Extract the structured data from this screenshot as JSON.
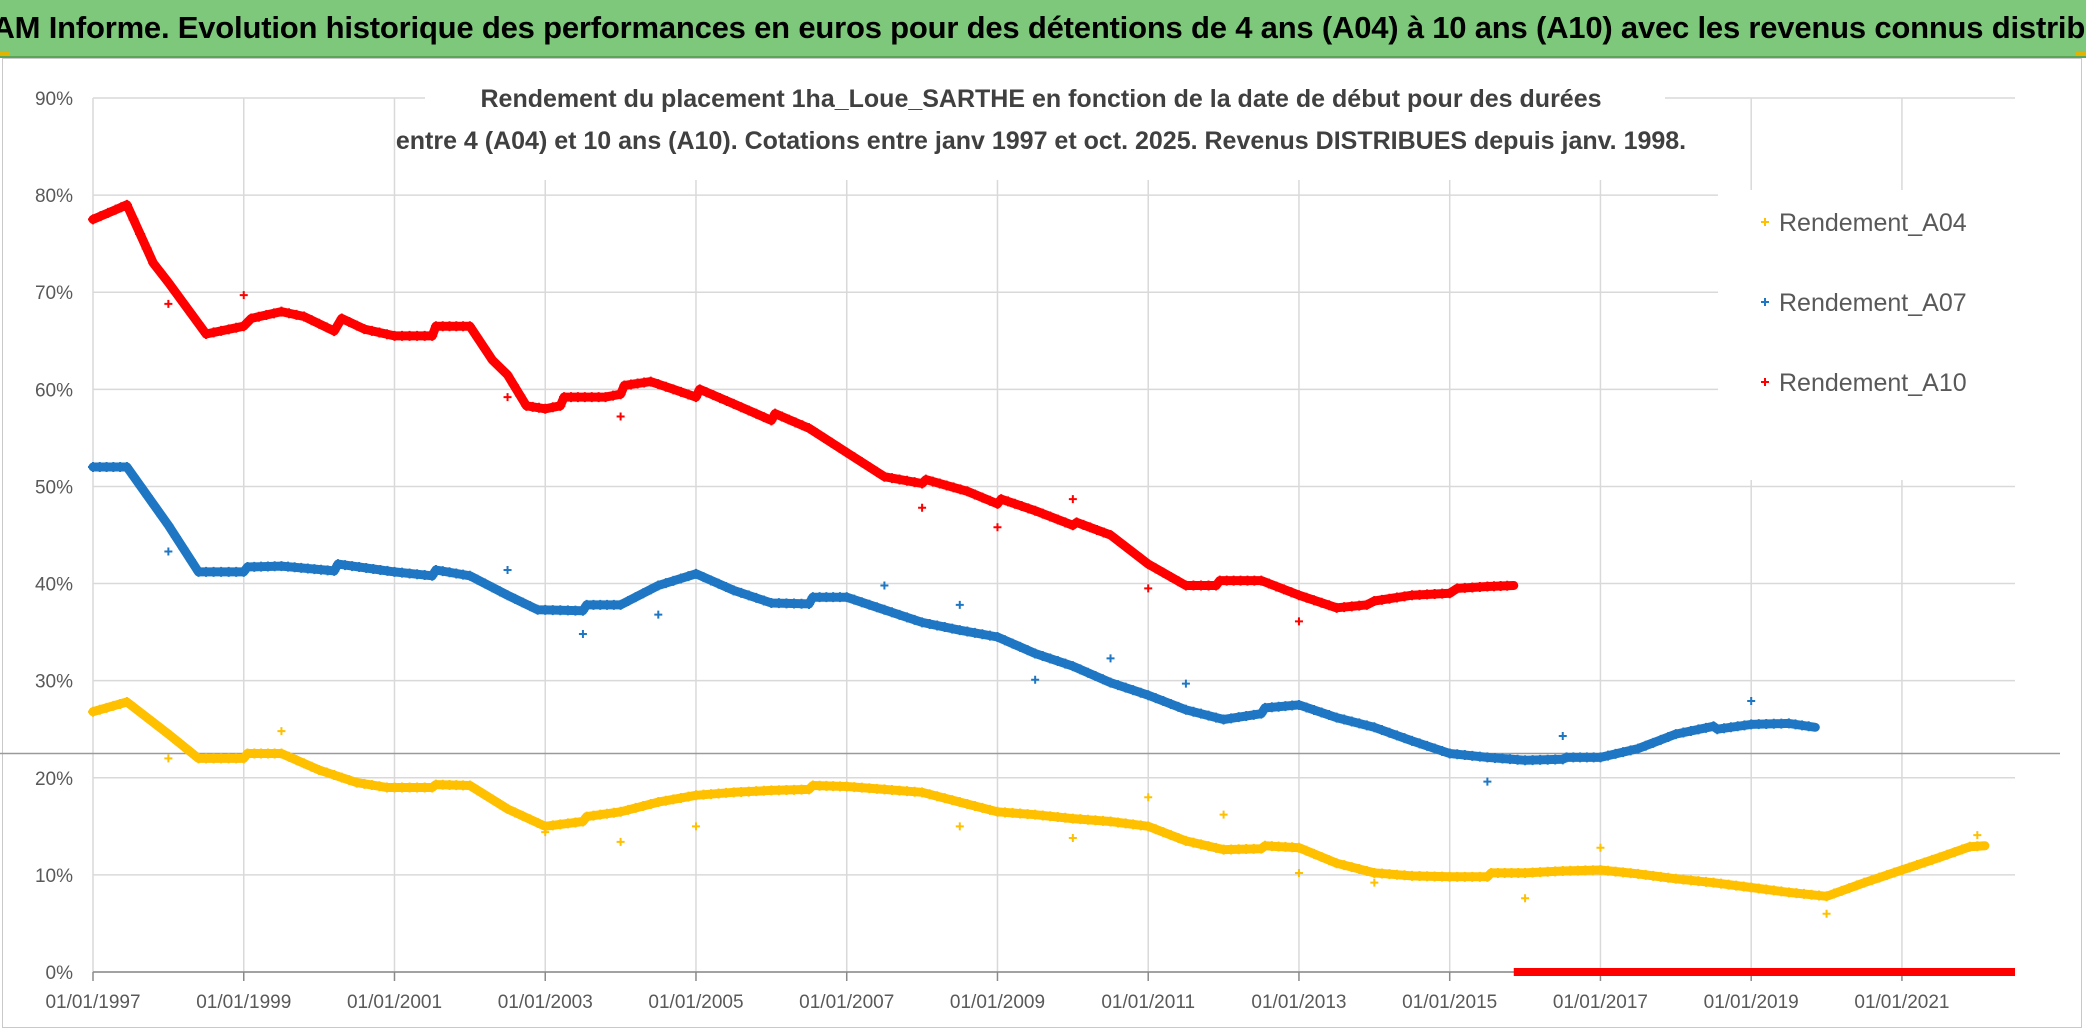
{
  "header": {
    "banner_title": "ADAM Informe. Evolution historique des performances en euros pour des détentions de 4 ans (A04) à 10 ans (A10) avec les revenus connus distribués"
  },
  "colors": {
    "banner_bg": "#7dc87a",
    "A04": "#ffc000",
    "A07": "#1f77c4",
    "A10": "#ff0000",
    "grid": "#d9d9d9",
    "axis_text": "#595959"
  },
  "chart_data": {
    "type": "scatter",
    "title_line1": "Rendement du placement 1ha_Loue_SARTHE en fonction de la date de début pour des durées",
    "title_line2": "entre 4 (A04) et 10 ans (A10). Cotations entre janv 1997 et oct. 2025. Revenus DISTRIBUES depuis janv. 1998.",
    "xlabel": "",
    "ylabel": "",
    "xlim": [
      1997.0,
      2022.5
    ],
    "ylim": [
      0,
      90
    ],
    "y_ticks": [
      "0%",
      "10%",
      "20%",
      "30%",
      "40%",
      "50%",
      "60%",
      "70%",
      "80%",
      "90%"
    ],
    "x_ticks": [
      "01/01/1997",
      "01/01/1999",
      "01/01/2001",
      "01/01/2003",
      "01/01/2005",
      "01/01/2007",
      "01/01/2009",
      "01/01/2011",
      "01/01/2013",
      "01/01/2015",
      "01/01/2017",
      "01/01/2019",
      "01/01/2021"
    ],
    "x_tick_values": [
      1997,
      1999,
      2001,
      2003,
      2005,
      2007,
      2009,
      2011,
      2013,
      2015,
      2017,
      2019,
      2021
    ],
    "reference_line_y": 22.5,
    "legend": {
      "position": "top-right",
      "entries": [
        "Rendement_A04",
        "Rendement_A07",
        "Rendement_A10"
      ]
    },
    "series": [
      {
        "name": "Rendement_A10",
        "color_key": "A10",
        "points": [
          [
            1997.0,
            77.5
          ],
          [
            1997.3,
            78.5
          ],
          [
            1997.45,
            79.0
          ],
          [
            1997.8,
            73.0
          ],
          [
            1998.0,
            71.0
          ],
          [
            1998.5,
            65.7
          ],
          [
            1999.0,
            66.5
          ],
          [
            1999.1,
            67.3
          ],
          [
            1999.5,
            68.0
          ],
          [
            1999.8,
            67.5
          ],
          [
            2000.2,
            66.0
          ],
          [
            2000.3,
            67.3
          ],
          [
            2000.6,
            66.2
          ],
          [
            2001.0,
            65.5
          ],
          [
            2001.5,
            65.5
          ],
          [
            2001.55,
            66.5
          ],
          [
            2002.0,
            66.5
          ],
          [
            2002.3,
            63.0
          ],
          [
            2002.5,
            61.5
          ],
          [
            2002.75,
            58.3
          ],
          [
            2003.0,
            58.0
          ],
          [
            2003.2,
            58.3
          ],
          [
            2003.25,
            59.2
          ],
          [
            2003.8,
            59.2
          ],
          [
            2004.0,
            59.5
          ],
          [
            2004.05,
            60.4
          ],
          [
            2004.4,
            60.8
          ],
          [
            2004.7,
            60.0
          ],
          [
            2005.0,
            59.2
          ],
          [
            2005.05,
            60.0
          ],
          [
            2005.5,
            58.5
          ],
          [
            2006.0,
            56.8
          ],
          [
            2006.05,
            57.5
          ],
          [
            2006.5,
            56.0
          ],
          [
            2007.0,
            53.5
          ],
          [
            2007.5,
            51.0
          ],
          [
            2008.0,
            50.3
          ],
          [
            2008.05,
            50.7
          ],
          [
            2008.6,
            49.5
          ],
          [
            2009.0,
            48.2
          ],
          [
            2009.05,
            48.7
          ],
          [
            2009.5,
            47.5
          ],
          [
            2010.0,
            46.0
          ],
          [
            2010.05,
            46.3
          ],
          [
            2010.5,
            45.0
          ],
          [
            2011.0,
            42.0
          ],
          [
            2011.5,
            39.8
          ],
          [
            2011.9,
            39.8
          ],
          [
            2011.95,
            40.3
          ],
          [
            2012.5,
            40.3
          ],
          [
            2013.0,
            38.8
          ],
          [
            2013.5,
            37.5
          ],
          [
            2013.9,
            37.8
          ],
          [
            2014.0,
            38.2
          ],
          [
            2014.5,
            38.8
          ],
          [
            2015.0,
            39.0
          ],
          [
            2015.1,
            39.5
          ],
          [
            2015.5,
            39.7
          ],
          [
            2015.85,
            39.8
          ]
        ],
        "outliers": [
          [
            1998.0,
            68.8
          ],
          [
            1999.0,
            69.7
          ],
          [
            2002.5,
            59.2
          ],
          [
            2004.0,
            57.2
          ],
          [
            2008.0,
            47.8
          ],
          [
            2009.0,
            45.8
          ],
          [
            2010.0,
            48.7
          ],
          [
            2011.0,
            39.5
          ],
          [
            2013.0,
            36.1
          ]
        ],
        "zero_line": [
          2015.85,
          2022.5
        ]
      },
      {
        "name": "Rendement_A07",
        "color_key": "A07",
        "points": [
          [
            1997.0,
            52.0
          ],
          [
            1997.45,
            52.0
          ],
          [
            1998.0,
            46.0
          ],
          [
            1998.4,
            41.2
          ],
          [
            1999.0,
            41.2
          ],
          [
            1999.05,
            41.7
          ],
          [
            1999.5,
            41.8
          ],
          [
            2000.2,
            41.3
          ],
          [
            2000.25,
            42.0
          ],
          [
            2001.0,
            41.2
          ],
          [
            2001.5,
            40.8
          ],
          [
            2001.55,
            41.4
          ],
          [
            2002.0,
            40.8
          ],
          [
            2002.5,
            38.8
          ],
          [
            2002.9,
            37.3
          ],
          [
            2003.5,
            37.2
          ],
          [
            2003.55,
            37.8
          ],
          [
            2004.0,
            37.8
          ],
          [
            2004.5,
            39.8
          ],
          [
            2005.0,
            41.0
          ],
          [
            2005.5,
            39.3
          ],
          [
            2006.0,
            38.0
          ],
          [
            2006.5,
            37.9
          ],
          [
            2006.55,
            38.6
          ],
          [
            2007.0,
            38.6
          ],
          [
            2007.5,
            37.3
          ],
          [
            2008.0,
            36.0
          ],
          [
            2008.5,
            35.2
          ],
          [
            2009.0,
            34.5
          ],
          [
            2009.5,
            32.8
          ],
          [
            2010.0,
            31.5
          ],
          [
            2010.5,
            29.8
          ],
          [
            2011.0,
            28.5
          ],
          [
            2011.5,
            27.0
          ],
          [
            2012.0,
            26.0
          ],
          [
            2012.5,
            26.6
          ],
          [
            2012.55,
            27.2
          ],
          [
            2013.0,
            27.5
          ],
          [
            2013.5,
            26.2
          ],
          [
            2014.0,
            25.2
          ],
          [
            2014.5,
            23.8
          ],
          [
            2015.0,
            22.5
          ],
          [
            2015.5,
            22.1
          ],
          [
            2016.0,
            21.8
          ],
          [
            2016.5,
            21.9
          ],
          [
            2016.55,
            22.1
          ],
          [
            2017.0,
            22.1
          ],
          [
            2017.5,
            23.0
          ],
          [
            2018.0,
            24.5
          ],
          [
            2018.5,
            25.3
          ],
          [
            2018.55,
            25.0
          ],
          [
            2019.0,
            25.5
          ],
          [
            2019.5,
            25.6
          ],
          [
            2019.85,
            25.2
          ]
        ],
        "outliers": [
          [
            1998.0,
            43.3
          ],
          [
            2002.5,
            41.4
          ],
          [
            2003.5,
            34.8
          ],
          [
            2004.5,
            36.8
          ],
          [
            2007.5,
            39.8
          ],
          [
            2008.5,
            37.8
          ],
          [
            2009.5,
            30.1
          ],
          [
            2010.5,
            32.3
          ],
          [
            2011.5,
            29.7
          ],
          [
            2015.5,
            19.6
          ],
          [
            2016.5,
            24.3
          ],
          [
            2019.0,
            27.9
          ]
        ]
      },
      {
        "name": "Rendement_A04",
        "color_key": "A04",
        "points": [
          [
            1997.0,
            26.8
          ],
          [
            1997.45,
            27.8
          ],
          [
            1998.0,
            24.5
          ],
          [
            1998.4,
            22.0
          ],
          [
            1999.0,
            22.0
          ],
          [
            1999.05,
            22.5
          ],
          [
            1999.5,
            22.5
          ],
          [
            2000.0,
            20.8
          ],
          [
            2000.5,
            19.5
          ],
          [
            2000.9,
            19.0
          ],
          [
            2001.5,
            19.0
          ],
          [
            2001.55,
            19.3
          ],
          [
            2002.0,
            19.2
          ],
          [
            2002.5,
            16.8
          ],
          [
            2003.0,
            15.0
          ],
          [
            2003.5,
            15.5
          ],
          [
            2003.55,
            16.0
          ],
          [
            2004.0,
            16.5
          ],
          [
            2004.5,
            17.5
          ],
          [
            2005.0,
            18.2
          ],
          [
            2005.5,
            18.5
          ],
          [
            2006.0,
            18.7
          ],
          [
            2006.5,
            18.8
          ],
          [
            2006.55,
            19.2
          ],
          [
            2007.0,
            19.1
          ],
          [
            2007.5,
            18.8
          ],
          [
            2008.0,
            18.5
          ],
          [
            2008.5,
            17.5
          ],
          [
            2009.0,
            16.5
          ],
          [
            2009.5,
            16.2
          ],
          [
            2010.0,
            15.8
          ],
          [
            2010.5,
            15.5
          ],
          [
            2011.0,
            15.0
          ],
          [
            2011.5,
            13.5
          ],
          [
            2012.0,
            12.6
          ],
          [
            2012.5,
            12.7
          ],
          [
            2012.55,
            13.0
          ],
          [
            2013.0,
            12.8
          ],
          [
            2013.5,
            11.2
          ],
          [
            2014.0,
            10.2
          ],
          [
            2014.5,
            9.9
          ],
          [
            2015.0,
            9.8
          ],
          [
            2015.5,
            9.8
          ],
          [
            2015.55,
            10.2
          ],
          [
            2016.0,
            10.2
          ],
          [
            2016.5,
            10.4
          ],
          [
            2017.0,
            10.5
          ],
          [
            2017.5,
            10.1
          ],
          [
            2018.0,
            9.6
          ],
          [
            2018.5,
            9.2
          ],
          [
            2019.0,
            8.7
          ],
          [
            2019.5,
            8.2
          ],
          [
            2020.0,
            7.8
          ],
          [
            2020.5,
            9.2
          ],
          [
            2021.0,
            10.5
          ],
          [
            2021.5,
            11.8
          ],
          [
            2021.9,
            12.9
          ],
          [
            2022.1,
            13.0
          ]
        ],
        "outliers": [
          [
            1998.0,
            22.0
          ],
          [
            1999.5,
            24.8
          ],
          [
            2003.0,
            14.4
          ],
          [
            2004.0,
            13.4
          ],
          [
            2005.0,
            15.0
          ],
          [
            2008.5,
            15.0
          ],
          [
            2010.0,
            13.8
          ],
          [
            2011.0,
            18.0
          ],
          [
            2012.0,
            16.2
          ],
          [
            2013.0,
            10.2
          ],
          [
            2014.0,
            9.2
          ],
          [
            2016.0,
            7.6
          ],
          [
            2017.0,
            12.8
          ],
          [
            2020.0,
            6.0
          ],
          [
            2022.0,
            14.1
          ]
        ]
      }
    ]
  }
}
